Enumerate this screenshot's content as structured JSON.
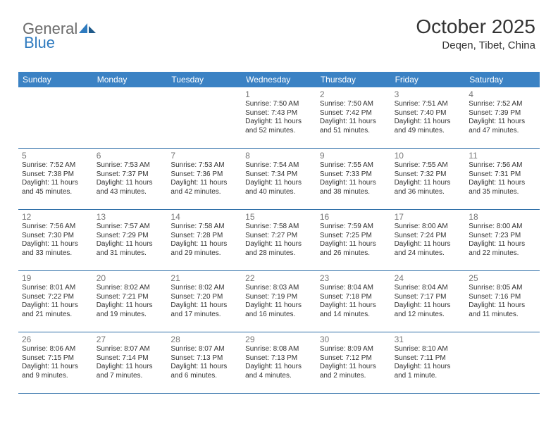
{
  "logo": {
    "text1": "General",
    "text2": "Blue"
  },
  "header": {
    "month": "October 2025",
    "location": "Deqen, Tibet, China"
  },
  "colors": {
    "header_bg": "#3b82c4",
    "header_text": "#ffffff",
    "rule": "#2f6fa8",
    "daynum": "#777777",
    "body_text": "#333333",
    "logo_gray": "#6b6b6b",
    "logo_blue": "#2f7bbf"
  },
  "day_labels": [
    "Sunday",
    "Monday",
    "Tuesday",
    "Wednesday",
    "Thursday",
    "Friday",
    "Saturday"
  ],
  "weeks": [
    [
      {
        "n": "",
        "sr": "",
        "ss": "",
        "dl": ""
      },
      {
        "n": "",
        "sr": "",
        "ss": "",
        "dl": ""
      },
      {
        "n": "",
        "sr": "",
        "ss": "",
        "dl": ""
      },
      {
        "n": "1",
        "sr": "Sunrise: 7:50 AM",
        "ss": "Sunset: 7:43 PM",
        "dl": "Daylight: 11 hours and 52 minutes."
      },
      {
        "n": "2",
        "sr": "Sunrise: 7:50 AM",
        "ss": "Sunset: 7:42 PM",
        "dl": "Daylight: 11 hours and 51 minutes."
      },
      {
        "n": "3",
        "sr": "Sunrise: 7:51 AM",
        "ss": "Sunset: 7:40 PM",
        "dl": "Daylight: 11 hours and 49 minutes."
      },
      {
        "n": "4",
        "sr": "Sunrise: 7:52 AM",
        "ss": "Sunset: 7:39 PM",
        "dl": "Daylight: 11 hours and 47 minutes."
      }
    ],
    [
      {
        "n": "5",
        "sr": "Sunrise: 7:52 AM",
        "ss": "Sunset: 7:38 PM",
        "dl": "Daylight: 11 hours and 45 minutes."
      },
      {
        "n": "6",
        "sr": "Sunrise: 7:53 AM",
        "ss": "Sunset: 7:37 PM",
        "dl": "Daylight: 11 hours and 43 minutes."
      },
      {
        "n": "7",
        "sr": "Sunrise: 7:53 AM",
        "ss": "Sunset: 7:36 PM",
        "dl": "Daylight: 11 hours and 42 minutes."
      },
      {
        "n": "8",
        "sr": "Sunrise: 7:54 AM",
        "ss": "Sunset: 7:34 PM",
        "dl": "Daylight: 11 hours and 40 minutes."
      },
      {
        "n": "9",
        "sr": "Sunrise: 7:55 AM",
        "ss": "Sunset: 7:33 PM",
        "dl": "Daylight: 11 hours and 38 minutes."
      },
      {
        "n": "10",
        "sr": "Sunrise: 7:55 AM",
        "ss": "Sunset: 7:32 PM",
        "dl": "Daylight: 11 hours and 36 minutes."
      },
      {
        "n": "11",
        "sr": "Sunrise: 7:56 AM",
        "ss": "Sunset: 7:31 PM",
        "dl": "Daylight: 11 hours and 35 minutes."
      }
    ],
    [
      {
        "n": "12",
        "sr": "Sunrise: 7:56 AM",
        "ss": "Sunset: 7:30 PM",
        "dl": "Daylight: 11 hours and 33 minutes."
      },
      {
        "n": "13",
        "sr": "Sunrise: 7:57 AM",
        "ss": "Sunset: 7:29 PM",
        "dl": "Daylight: 11 hours and 31 minutes."
      },
      {
        "n": "14",
        "sr": "Sunrise: 7:58 AM",
        "ss": "Sunset: 7:28 PM",
        "dl": "Daylight: 11 hours and 29 minutes."
      },
      {
        "n": "15",
        "sr": "Sunrise: 7:58 AM",
        "ss": "Sunset: 7:27 PM",
        "dl": "Daylight: 11 hours and 28 minutes."
      },
      {
        "n": "16",
        "sr": "Sunrise: 7:59 AM",
        "ss": "Sunset: 7:25 PM",
        "dl": "Daylight: 11 hours and 26 minutes."
      },
      {
        "n": "17",
        "sr": "Sunrise: 8:00 AM",
        "ss": "Sunset: 7:24 PM",
        "dl": "Daylight: 11 hours and 24 minutes."
      },
      {
        "n": "18",
        "sr": "Sunrise: 8:00 AM",
        "ss": "Sunset: 7:23 PM",
        "dl": "Daylight: 11 hours and 22 minutes."
      }
    ],
    [
      {
        "n": "19",
        "sr": "Sunrise: 8:01 AM",
        "ss": "Sunset: 7:22 PM",
        "dl": "Daylight: 11 hours and 21 minutes."
      },
      {
        "n": "20",
        "sr": "Sunrise: 8:02 AM",
        "ss": "Sunset: 7:21 PM",
        "dl": "Daylight: 11 hours and 19 minutes."
      },
      {
        "n": "21",
        "sr": "Sunrise: 8:02 AM",
        "ss": "Sunset: 7:20 PM",
        "dl": "Daylight: 11 hours and 17 minutes."
      },
      {
        "n": "22",
        "sr": "Sunrise: 8:03 AM",
        "ss": "Sunset: 7:19 PM",
        "dl": "Daylight: 11 hours and 16 minutes."
      },
      {
        "n": "23",
        "sr": "Sunrise: 8:04 AM",
        "ss": "Sunset: 7:18 PM",
        "dl": "Daylight: 11 hours and 14 minutes."
      },
      {
        "n": "24",
        "sr": "Sunrise: 8:04 AM",
        "ss": "Sunset: 7:17 PM",
        "dl": "Daylight: 11 hours and 12 minutes."
      },
      {
        "n": "25",
        "sr": "Sunrise: 8:05 AM",
        "ss": "Sunset: 7:16 PM",
        "dl": "Daylight: 11 hours and 11 minutes."
      }
    ],
    [
      {
        "n": "26",
        "sr": "Sunrise: 8:06 AM",
        "ss": "Sunset: 7:15 PM",
        "dl": "Daylight: 11 hours and 9 minutes."
      },
      {
        "n": "27",
        "sr": "Sunrise: 8:07 AM",
        "ss": "Sunset: 7:14 PM",
        "dl": "Daylight: 11 hours and 7 minutes."
      },
      {
        "n": "28",
        "sr": "Sunrise: 8:07 AM",
        "ss": "Sunset: 7:13 PM",
        "dl": "Daylight: 11 hours and 6 minutes."
      },
      {
        "n": "29",
        "sr": "Sunrise: 8:08 AM",
        "ss": "Sunset: 7:13 PM",
        "dl": "Daylight: 11 hours and 4 minutes."
      },
      {
        "n": "30",
        "sr": "Sunrise: 8:09 AM",
        "ss": "Sunset: 7:12 PM",
        "dl": "Daylight: 11 hours and 2 minutes."
      },
      {
        "n": "31",
        "sr": "Sunrise: 8:10 AM",
        "ss": "Sunset: 7:11 PM",
        "dl": "Daylight: 11 hours and 1 minute."
      },
      {
        "n": "",
        "sr": "",
        "ss": "",
        "dl": ""
      }
    ]
  ]
}
